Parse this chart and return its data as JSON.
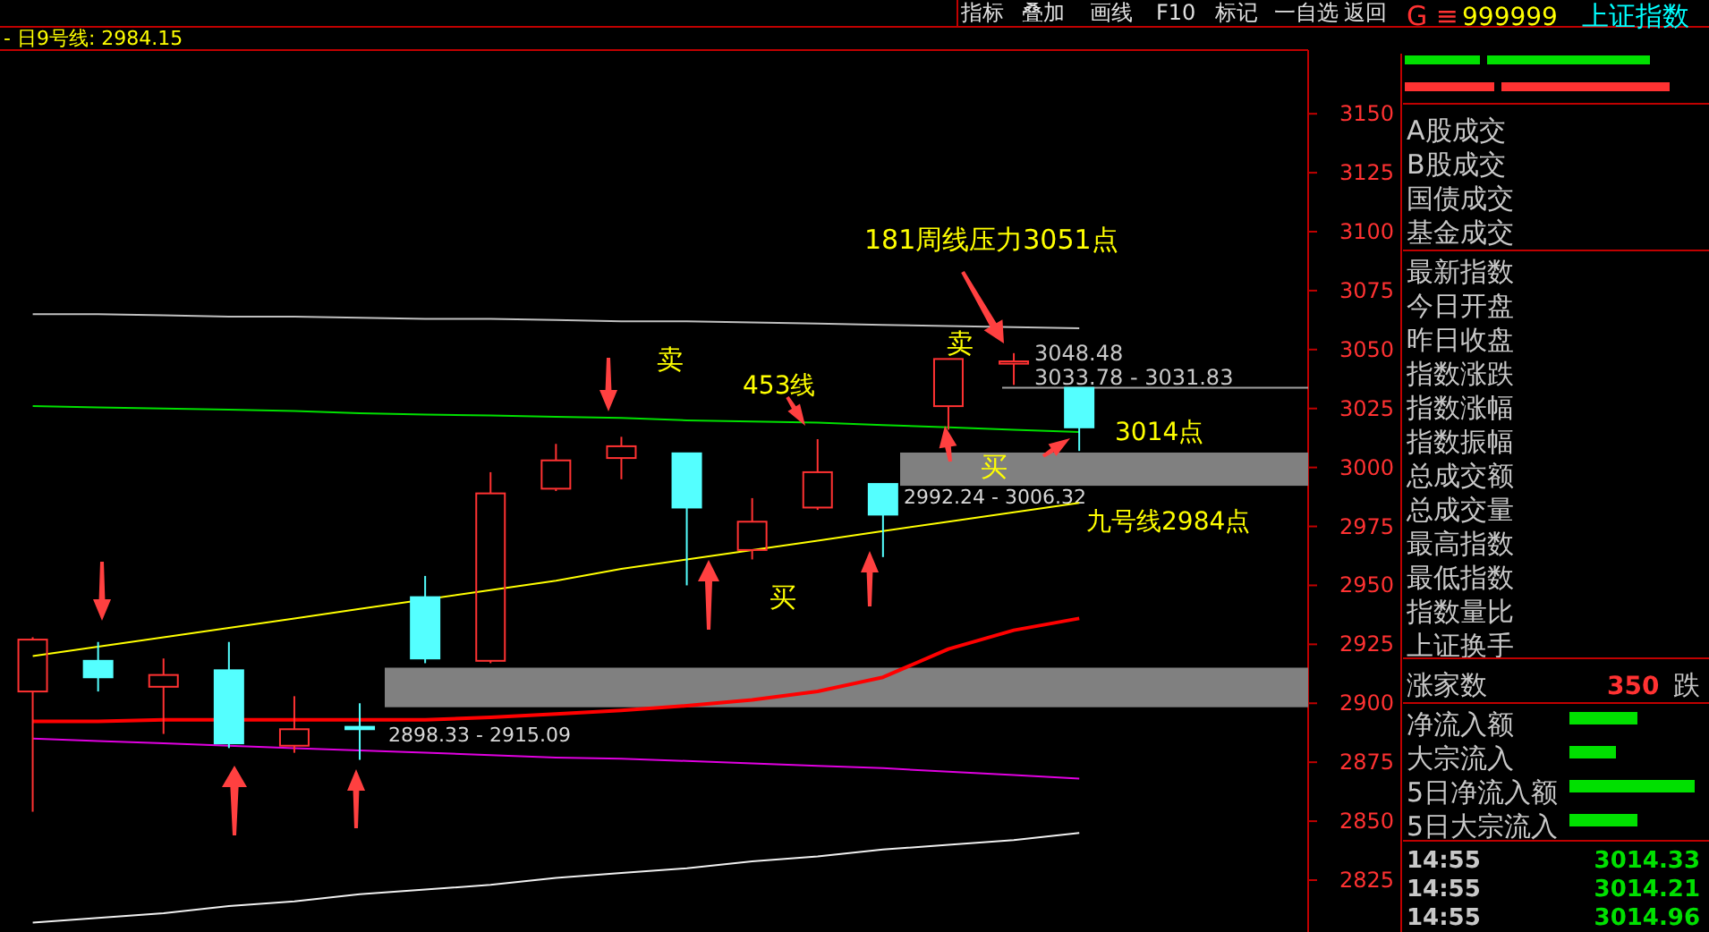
{
  "chart_data": {
    "type": "candlestick",
    "title": "- 日9号线: 2984.15",
    "categories": [
      null,
      null,
      null,
      null,
      null,
      null,
      null,
      null,
      null,
      null,
      null,
      null,
      null,
      null,
      null,
      null,
      null,
      null,
      null,
      null
    ],
    "ohlc": [
      [
        2905,
        2928,
        2854,
        2927
      ],
      [
        2918,
        2926,
        2905,
        2911
      ],
      [
        2907,
        2919,
        2887,
        2912
      ],
      [
        2914,
        2926,
        2881,
        2883
      ],
      [
        2882,
        2903,
        2879,
        2889
      ],
      [
        2890,
        2900,
        2876,
        2889
      ],
      [
        2945,
        2954,
        2917,
        2919
      ],
      [
        2918,
        2998,
        2917,
        2989
      ],
      [
        2991,
        3010,
        2990,
        3003
      ],
      [
        3004,
        3013,
        2995,
        3009
      ],
      [
        3006,
        3006,
        2950,
        2983
      ],
      [
        2965,
        2987,
        2961,
        2977
      ],
      [
        2983,
        3012,
        2982,
        2998
      ],
      [
        2993,
        2993,
        2962,
        2980
      ],
      [
        3026,
        3046,
        3016,
        3046
      ],
      [
        3044,
        3048.48,
        3035,
        3045
      ],
      [
        3033.78,
        3033.78,
        3007,
        3017
      ],
      null,
      null,
      null
    ],
    "colors": [
      "#ff3232",
      "#54ffff",
      "#ff3232",
      "#54ffff",
      "#ff3232",
      "#54ffff",
      "#54ffff",
      "#ff3232",
      "#ff3232",
      "#ff3232",
      "#54ffff",
      "#ff3232",
      "#ff3232",
      "#54ffff",
      "#ff3232",
      "#ff3232",
      "#54ffff",
      null,
      null,
      null
    ],
    "series": [
      {
        "type": "line",
        "color": "#c0c0c0",
        "values": [
          3065,
          3065,
          3064.5,
          3064,
          3064,
          3063.5,
          3063,
          3063,
          3062.5,
          3062,
          3062,
          3061.5,
          3061,
          3060.5,
          3060,
          3059.5,
          3059,
          null,
          null,
          null
        ]
      },
      {
        "type": "line",
        "color": "#00e000",
        "values": [
          3026,
          3025.5,
          3025,
          3024.5,
          3024,
          3023,
          3022.5,
          3022,
          3021.5,
          3021,
          3020,
          3019.5,
          3019,
          3018,
          3017,
          3016,
          3015,
          null,
          null,
          null
        ]
      },
      {
        "type": "line",
        "color": "#ffff00",
        "values": [
          2920,
          2924,
          2928,
          2932,
          2936,
          2940,
          null,
          2948,
          2952,
          2957,
          2961,
          2965,
          2969,
          2973,
          2977,
          2981,
          2985,
          null,
          null,
          null
        ]
      },
      {
        "type": "line",
        "color": "#ff0000",
        "values": [
          2892.4,
          2892.4,
          2893,
          null,
          2893,
          2893,
          2893,
          2894,
          2895.5,
          2897,
          2899,
          2901.5,
          2905,
          2911,
          2923,
          2931,
          2936,
          null,
          null,
          null
        ]
      },
      {
        "type": "line",
        "color": "#e000e0",
        "values": [
          2885,
          2884,
          2883,
          2882,
          2881,
          2880,
          2879,
          2878,
          2877,
          2876.5,
          2875.5,
          2874.5,
          2873.5,
          2872.5,
          2871,
          2869.5,
          2868,
          null,
          null,
          null
        ]
      },
      {
        "type": "line",
        "color": "#f0f0f0",
        "values": [
          2807,
          2809,
          2811,
          2814,
          2816,
          2819,
          2821,
          2823,
          2826,
          2828,
          2830,
          2833,
          2835,
          2838,
          2840,
          2842,
          2845,
          null,
          null,
          null
        ]
      }
    ],
    "ylim": [
      2803,
      3177
    ],
    "yticks": [
      2825,
      2850,
      2875,
      2900,
      2925,
      2950,
      2975,
      3000,
      3025,
      3050,
      3075,
      3100,
      3125,
      3150
    ],
    "tick_labels": "y",
    "bands": [
      {
        "axis": "y",
        "from": 2898.33,
        "to": 2915.09,
        "label": "2898.33 - 2915.09",
        "color": "#808080"
      },
      {
        "axis": "y",
        "from": 2992.24,
        "to": 3006.32,
        "label": "2992.24 - 3006.32",
        "color": "#808080"
      }
    ],
    "ref_lines": [
      {
        "axis": "y",
        "value": 3033.78,
        "label": "3033.78 - 3031.83",
        "color": "#a0a0a0"
      }
    ],
    "annotations": [
      "181周线压力3051点",
      "453线",
      "3014点",
      "九号线2984点",
      "卖",
      "卖",
      "买",
      "买",
      "3048.48",
      "指标",
      "叠加",
      "画线",
      "F10",
      "标记",
      "一自选",
      "返回",
      "G ≡",
      "999999",
      "上证指数",
      "A股成交",
      "B股成交",
      "国债成交",
      "基金成交",
      "最新指数",
      "今日开盘",
      "昨日收盘",
      "指数涨跌",
      "指数涨幅",
      "指数振幅",
      "总成交额",
      "总成交量",
      "最高指数",
      "最低指数",
      "指数量比",
      "上证换手",
      "涨家数",
      "350",
      "跌",
      "净流入额",
      "大宗流入",
      "5日净流入额",
      "5日大宗流入",
      "14:55",
      "3014.33",
      "14:55",
      "3014.21",
      "14:55",
      "3014.96"
    ]
  }
}
